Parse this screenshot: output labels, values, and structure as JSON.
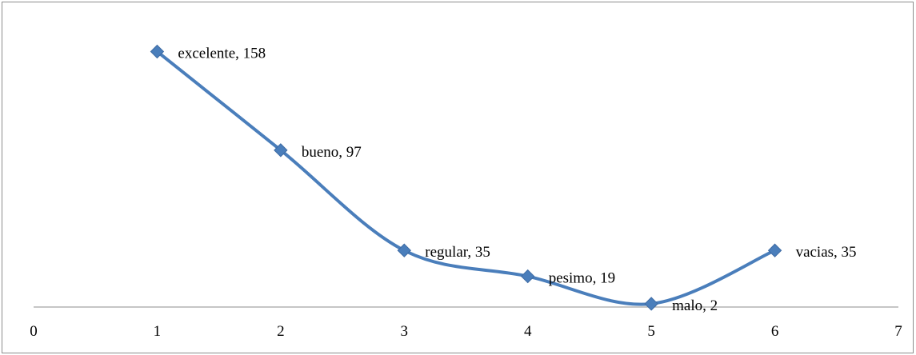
{
  "chart_data": {
    "type": "line",
    "title": "",
    "xlabel": "",
    "ylabel": "",
    "xlim": [
      0,
      7
    ],
    "ylim": [
      0,
      180
    ],
    "x_ticks": [
      "0",
      "1",
      "2",
      "3",
      "4",
      "5",
      "6",
      "7"
    ],
    "y_axis_visible": false,
    "grid": false,
    "legend": "none",
    "smoothed": true,
    "marker": "diamond",
    "series_color": "#4a7ebb",
    "points": [
      {
        "x": 1,
        "y": 158,
        "label": "excelente, 158"
      },
      {
        "x": 2,
        "y": 97,
        "label": "bueno, 97"
      },
      {
        "x": 3,
        "y": 35,
        "label": "regular, 35"
      },
      {
        "x": 4,
        "y": 19,
        "label": "pesimo, 19"
      },
      {
        "x": 5,
        "y": 2,
        "label": "malo, 2"
      },
      {
        "x": 6,
        "y": 35,
        "label": "vacias, 35"
      }
    ]
  }
}
